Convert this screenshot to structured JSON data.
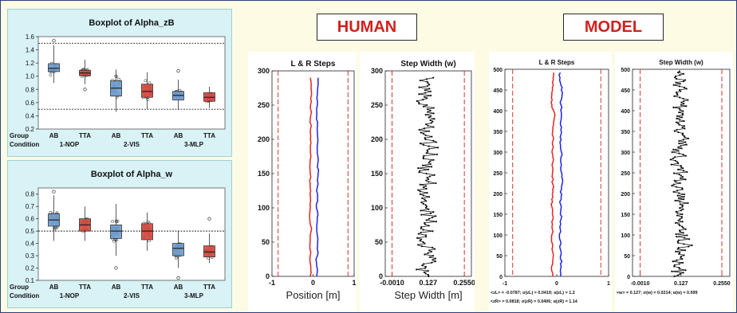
{
  "headings": {
    "human": "HUMAN",
    "model": "MODEL"
  },
  "colors": {
    "ab": "#6f9fd1",
    "tta": "#d84a3f",
    "left": "#e8231f",
    "right": "#1f22e6",
    "walk": "#111111",
    "ref": "#d0211c"
  },
  "chart_data": [
    {
      "id": "box_zb",
      "type": "box",
      "title": "Boxplot of Alpha_zB",
      "ylim": [
        0.2,
        1.6
      ],
      "yticks": [
        0.2,
        0.4,
        0.6,
        0.8,
        1.0,
        1.2,
        1.4,
        1.6
      ],
      "ytick_labels": [
        "0.2",
        "0.4",
        "0.6",
        "0.8",
        "1.0",
        "1.2",
        "1.4",
        "1.6"
      ],
      "ref_lines": [
        1.5,
        0.5
      ],
      "row_labels": [
        "Group",
        "Condition"
      ],
      "groups": [
        {
          "name": "1-NOP",
          "boxes": [
            {
              "label": "AB",
              "q1": 1.07,
              "median": 1.12,
              "q3": 1.19,
              "whisk": [
                0.9,
                1.47
              ],
              "outliers": [
                1.54
              ],
              "spread": 0.08
            },
            {
              "label": "TTA",
              "q1": 1.01,
              "median": 1.05,
              "q3": 1.09,
              "whisk": [
                0.88,
                1.25
              ],
              "outliers": [
                0.8
              ],
              "spread": 0.06
            }
          ]
        },
        {
          "name": "2-VIS",
          "boxes": [
            {
              "label": "AB",
              "q1": 0.7,
              "median": 0.82,
              "q3": 0.93,
              "whisk": [
                0.46,
                1.1
              ],
              "outliers": [],
              "spread": 0.15
            },
            {
              "label": "TTA",
              "q1": 0.68,
              "median": 0.77,
              "q3": 0.88,
              "whisk": [
                0.5,
                1.06
              ],
              "outliers": [],
              "spread": 0.13
            }
          ]
        },
        {
          "name": "3-MLP",
          "boxes": [
            {
              "label": "AB",
              "q1": 0.64,
              "median": 0.71,
              "q3": 0.77,
              "whisk": [
                0.49,
                0.95
              ],
              "outliers": [
                1.08
              ],
              "spread": 0.09
            },
            {
              "label": "TTA",
              "q1": 0.62,
              "median": 0.68,
              "q3": 0.75,
              "whisk": [
                0.52,
                0.84
              ],
              "outliers": [],
              "spread": 0.07
            }
          ]
        }
      ]
    },
    {
      "id": "box_w",
      "type": "box",
      "title": "Boxplot of Alpha_w",
      "ylim": [
        0.1,
        0.85
      ],
      "yticks": [
        0.1,
        0.2,
        0.3,
        0.4,
        0.5,
        0.6,
        0.7,
        0.8
      ],
      "ytick_labels": [
        "0.1",
        "0.2",
        "0.3",
        "0.4",
        "0.5",
        "0.6",
        "0.7",
        "0.8"
      ],
      "ref_lines": [
        0.5
      ],
      "row_labels": [
        "Group",
        "Condition"
      ],
      "groups": [
        {
          "name": "1-NOP",
          "boxes": [
            {
              "label": "AB",
              "q1": 0.54,
              "median": 0.59,
              "q3": 0.64,
              "whisk": [
                0.42,
                0.79
              ],
              "outliers": [
                0.82
              ],
              "spread": 0.07
            },
            {
              "label": "TTA",
              "q1": 0.5,
              "median": 0.55,
              "q3": 0.6,
              "whisk": [
                0.42,
                0.7
              ],
              "outliers": [],
              "spread": 0.06
            }
          ]
        },
        {
          "name": "2-VIS",
          "boxes": [
            {
              "label": "AB",
              "q1": 0.44,
              "median": 0.5,
              "q3": 0.55,
              "whisk": [
                0.3,
                0.72
              ],
              "outliers": [
                0.2
              ],
              "spread": 0.08
            },
            {
              "label": "TTA",
              "q1": 0.43,
              "median": 0.5,
              "q3": 0.56,
              "whisk": [
                0.34,
                0.65
              ],
              "outliers": [],
              "spread": 0.07
            }
          ]
        },
        {
          "name": "3-MLP",
          "boxes": [
            {
              "label": "AB",
              "q1": 0.3,
              "median": 0.36,
              "q3": 0.4,
              "whisk": [
                0.2,
                0.5
              ],
              "outliers": [
                0.12
              ],
              "spread": 0.07
            },
            {
              "label": "TTA",
              "q1": 0.29,
              "median": 0.33,
              "q3": 0.38,
              "whisk": [
                0.24,
                0.48
              ],
              "outliers": [
                0.6
              ],
              "spread": 0.05
            }
          ]
        }
      ]
    },
    {
      "id": "human_lr",
      "type": "line",
      "title": "L & R Steps",
      "xlabel": "Position [m]",
      "xlim": [
        -1,
        1
      ],
      "xticks": [
        -1,
        0,
        1
      ],
      "xtick_labels": [
        "-1",
        "0",
        "1"
      ],
      "ylim": [
        0,
        300
      ],
      "yticks": [
        0,
        50,
        100,
        150,
        200,
        250,
        300
      ],
      "ytick_labels": [
        "0",
        "50",
        "100",
        "150",
        "200",
        "250",
        "300"
      ],
      "ref_x": [
        -0.85,
        0.85
      ],
      "steps": 290,
      "series": [
        {
          "key": "left",
          "mean": -0.06,
          "amp": 0.03
        },
        {
          "key": "right",
          "mean": 0.1,
          "amp": 0.03
        }
      ]
    },
    {
      "id": "human_w",
      "type": "line",
      "title": "Step Width (w)",
      "xlabel": "Step Width [m]",
      "xlim": [
        -0.025,
        0.28
      ],
      "xticks": [
        -0.001,
        0.127,
        0.255
      ],
      "xtick_labels": [
        "-0.0010",
        "0.127",
        "0.2550"
      ],
      "ylim": [
        0,
        300
      ],
      "yticks": [
        0,
        50,
        100,
        150,
        200,
        250,
        300
      ],
      "ytick_labels": [
        "0",
        "50",
        "100",
        "150",
        "200",
        "250",
        "300"
      ],
      "ref_x": [
        -0.001,
        0.255
      ],
      "steps": 290,
      "series": [
        {
          "key": "walk",
          "mean": 0.127,
          "amp": 0.028
        }
      ]
    },
    {
      "id": "model_lr",
      "type": "line",
      "title": "L & R Steps",
      "xlim": [
        -1,
        1
      ],
      "xticks": [
        -1,
        0,
        1
      ],
      "xtick_labels": [
        "-1",
        "0",
        "1"
      ],
      "ylim": [
        0,
        500
      ],
      "yticks": [
        0,
        50,
        100,
        150,
        200,
        250,
        300,
        350,
        400,
        450,
        500
      ],
      "ytick_labels": [
        "0",
        "50",
        "100",
        "150",
        "200",
        "250",
        "300",
        "350",
        "400",
        "450",
        "500"
      ],
      "ref_x": [
        -0.85,
        0.85
      ],
      "steps": 495,
      "series": [
        {
          "key": "left",
          "mean": -0.0787,
          "amp": 0.03
        },
        {
          "key": "right",
          "mean": 0.0818,
          "amp": 0.03
        }
      ],
      "stats": [
        "<zL> = -0.0787; σ(zL) = 0.0419; α(zL) = 1.2",
        "<zR> = 0.0818; σ(zR) = 0.0406; α(zR) = 1.14"
      ]
    },
    {
      "id": "model_w",
      "type": "line",
      "title": "Step Width (w)",
      "xlim": [
        -0.025,
        0.28
      ],
      "xticks": [
        -0.001,
        0.127,
        0.255
      ],
      "xtick_labels": [
        "-0.0010",
        "0.127",
        "0.2550"
      ],
      "ylim": [
        0,
        500
      ],
      "yticks": [
        0,
        50,
        100,
        150,
        200,
        250,
        300,
        350,
        400,
        450,
        500
      ],
      "ytick_labels": [
        "0",
        "50",
        "100",
        "150",
        "200",
        "250",
        "300",
        "350",
        "400",
        "450",
        "500"
      ],
      "ref_x": [
        -0.001,
        0.255
      ],
      "steps": 495,
      "series": [
        {
          "key": "walk",
          "mean": 0.127,
          "amp": 0.0214
        }
      ],
      "stats": [
        "<w> = 0.127; σ(w) = 0.0214; α(w) = 0.599"
      ]
    }
  ]
}
